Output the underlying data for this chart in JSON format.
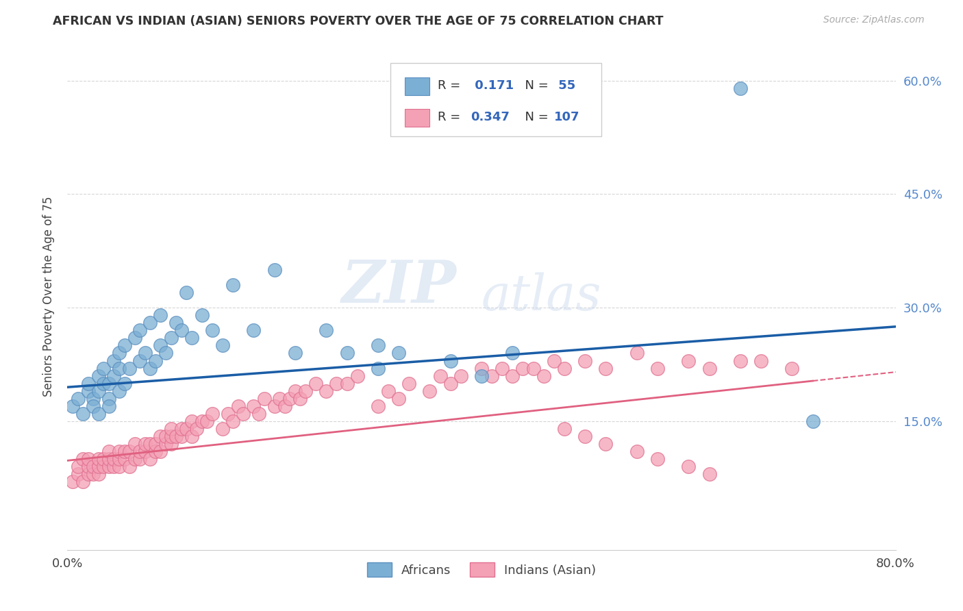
{
  "title": "AFRICAN VS INDIAN (ASIAN) SENIORS POVERTY OVER THE AGE OF 75 CORRELATION CHART",
  "source": "Source: ZipAtlas.com",
  "ylabel": "Seniors Poverty Over the Age of 75",
  "xlim": [
    0.0,
    0.8
  ],
  "ylim": [
    -0.02,
    0.65
  ],
  "yticks": [
    0.15,
    0.3,
    0.45,
    0.6
  ],
  "ytick_labels": [
    "15.0%",
    "30.0%",
    "45.0%",
    "60.0%"
  ],
  "xticks": [
    0.0,
    0.1,
    0.2,
    0.3,
    0.4,
    0.5,
    0.6,
    0.7,
    0.8
  ],
  "xtick_labels": [
    "0.0%",
    "",
    "",
    "",
    "",
    "",
    "",
    "",
    "80.0%"
  ],
  "african_R": 0.171,
  "african_N": 55,
  "indian_R": 0.347,
  "indian_N": 107,
  "african_color": "#7BAFD4",
  "indian_color": "#F4A0B5",
  "african_edge": "#5B8FBF",
  "indian_edge": "#E07090",
  "trend_african_color": "#1A5DA6",
  "trend_indian_color": "#E06080",
  "watermark_zip": "ZIP",
  "watermark_atlas": "atlas",
  "background_color": "#FFFFFF",
  "african_scatter_x": [
    0.005,
    0.01,
    0.015,
    0.02,
    0.02,
    0.025,
    0.025,
    0.03,
    0.03,
    0.03,
    0.035,
    0.035,
    0.04,
    0.04,
    0.04,
    0.045,
    0.045,
    0.05,
    0.05,
    0.05,
    0.055,
    0.055,
    0.06,
    0.065,
    0.07,
    0.07,
    0.075,
    0.08,
    0.08,
    0.085,
    0.09,
    0.09,
    0.095,
    0.1,
    0.105,
    0.11,
    0.115,
    0.12,
    0.13,
    0.14,
    0.15,
    0.16,
    0.18,
    0.2,
    0.22,
    0.25,
    0.27,
    0.3,
    0.32,
    0.37,
    0.4,
    0.43,
    0.3,
    0.65,
    0.72
  ],
  "african_scatter_y": [
    0.17,
    0.18,
    0.16,
    0.19,
    0.2,
    0.18,
    0.17,
    0.19,
    0.21,
    0.16,
    0.2,
    0.22,
    0.18,
    0.2,
    0.17,
    0.21,
    0.23,
    0.19,
    0.22,
    0.24,
    0.2,
    0.25,
    0.22,
    0.26,
    0.23,
    0.27,
    0.24,
    0.22,
    0.28,
    0.23,
    0.25,
    0.29,
    0.24,
    0.26,
    0.28,
    0.27,
    0.32,
    0.26,
    0.29,
    0.27,
    0.25,
    0.33,
    0.27,
    0.35,
    0.24,
    0.27,
    0.24,
    0.22,
    0.24,
    0.23,
    0.21,
    0.24,
    0.25,
    0.59,
    0.15
  ],
  "indian_scatter_x": [
    0.005,
    0.01,
    0.01,
    0.015,
    0.015,
    0.02,
    0.02,
    0.02,
    0.025,
    0.025,
    0.03,
    0.03,
    0.03,
    0.035,
    0.035,
    0.04,
    0.04,
    0.04,
    0.045,
    0.045,
    0.05,
    0.05,
    0.05,
    0.055,
    0.055,
    0.06,
    0.06,
    0.065,
    0.065,
    0.07,
    0.07,
    0.075,
    0.075,
    0.08,
    0.08,
    0.085,
    0.085,
    0.09,
    0.09,
    0.095,
    0.095,
    0.1,
    0.1,
    0.1,
    0.105,
    0.11,
    0.11,
    0.115,
    0.12,
    0.12,
    0.125,
    0.13,
    0.135,
    0.14,
    0.15,
    0.155,
    0.16,
    0.165,
    0.17,
    0.18,
    0.185,
    0.19,
    0.2,
    0.205,
    0.21,
    0.215,
    0.22,
    0.225,
    0.23,
    0.24,
    0.25,
    0.26,
    0.27,
    0.28,
    0.3,
    0.31,
    0.32,
    0.33,
    0.35,
    0.36,
    0.37,
    0.38,
    0.4,
    0.41,
    0.42,
    0.43,
    0.44,
    0.45,
    0.46,
    0.47,
    0.48,
    0.5,
    0.52,
    0.55,
    0.57,
    0.6,
    0.62,
    0.65,
    0.67,
    0.7,
    0.48,
    0.5,
    0.52,
    0.55,
    0.57,
    0.6,
    0.62
  ],
  "indian_scatter_y": [
    0.07,
    0.08,
    0.09,
    0.07,
    0.1,
    0.08,
    0.09,
    0.1,
    0.08,
    0.09,
    0.08,
    0.09,
    0.1,
    0.09,
    0.1,
    0.09,
    0.1,
    0.11,
    0.09,
    0.1,
    0.09,
    0.1,
    0.11,
    0.1,
    0.11,
    0.09,
    0.11,
    0.1,
    0.12,
    0.1,
    0.11,
    0.11,
    0.12,
    0.1,
    0.12,
    0.11,
    0.12,
    0.11,
    0.13,
    0.12,
    0.13,
    0.12,
    0.13,
    0.14,
    0.13,
    0.13,
    0.14,
    0.14,
    0.13,
    0.15,
    0.14,
    0.15,
    0.15,
    0.16,
    0.14,
    0.16,
    0.15,
    0.17,
    0.16,
    0.17,
    0.16,
    0.18,
    0.17,
    0.18,
    0.17,
    0.18,
    0.19,
    0.18,
    0.19,
    0.2,
    0.19,
    0.2,
    0.2,
    0.21,
    0.17,
    0.19,
    0.18,
    0.2,
    0.19,
    0.21,
    0.2,
    0.21,
    0.22,
    0.21,
    0.22,
    0.21,
    0.22,
    0.22,
    0.21,
    0.23,
    0.22,
    0.23,
    0.22,
    0.24,
    0.22,
    0.23,
    0.22,
    0.23,
    0.23,
    0.22,
    0.14,
    0.13,
    0.12,
    0.11,
    0.1,
    0.09,
    0.08
  ],
  "trend_african_x0": 0.0,
  "trend_african_y0": 0.195,
  "trend_african_x1": 0.8,
  "trend_african_y1": 0.275,
  "trend_indian_x0": 0.0,
  "trend_indian_y0": 0.098,
  "trend_indian_x1": 0.8,
  "trend_indian_y1": 0.215
}
